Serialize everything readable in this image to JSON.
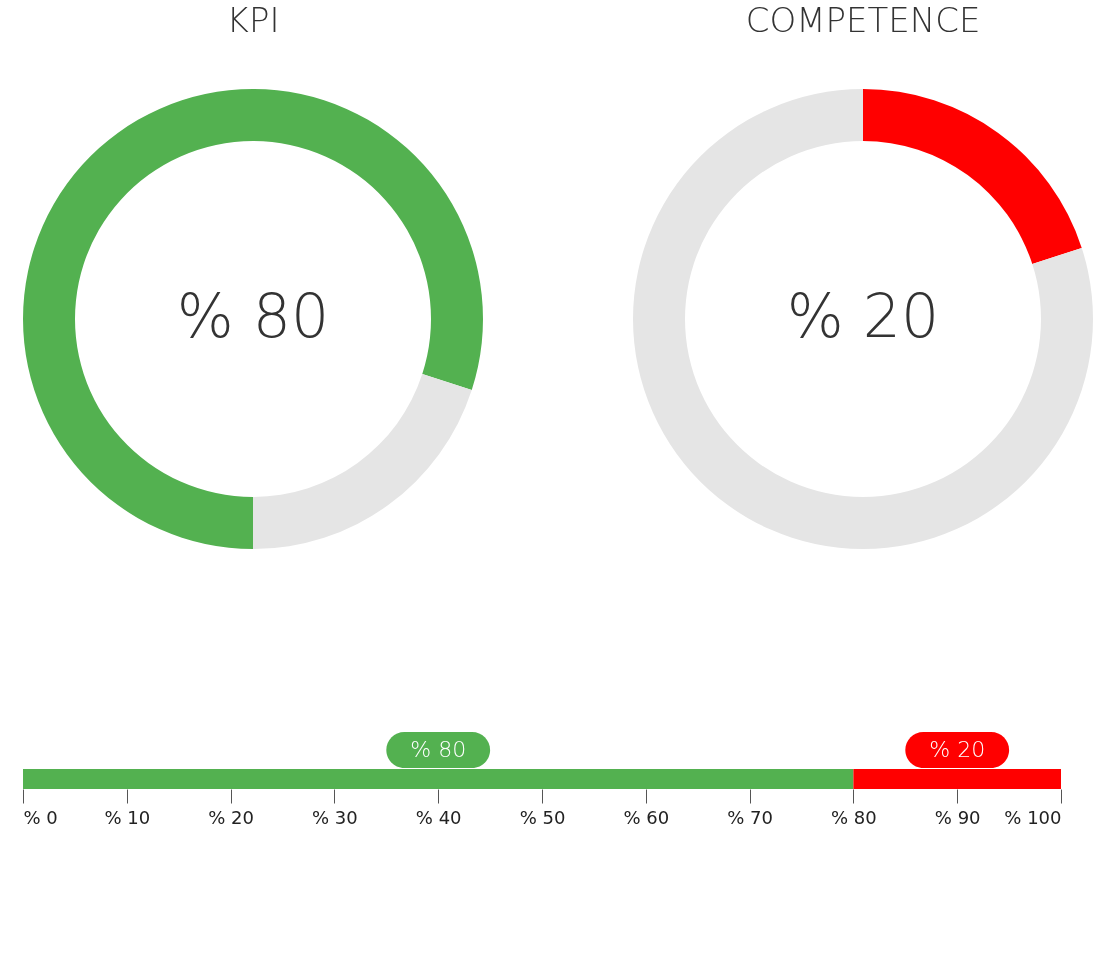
{
  "chart_data": [
    {
      "type": "donut",
      "title": "KPI",
      "categories": [
        null,
        null
      ],
      "values": [
        80,
        20
      ],
      "colors": [
        "#53b150",
        "#e5e5e5"
      ],
      "value_labels": [
        "% 80",
        null
      ]
    },
    {
      "type": "donut",
      "title": "COMPETENCE",
      "categories": [
        null,
        null
      ],
      "values": [
        20,
        80
      ],
      "colors": [
        "#ff0000",
        "#e5e5e5"
      ],
      "value_labels": [
        "% 20",
        null
      ]
    },
    {
      "type": "bar",
      "orientation": "horizontal",
      "stacked": true,
      "categories": [
        null
      ],
      "series": [
        {
          "color": "#53b150",
          "values": [
            80
          ],
          "value_labels": [
            "% 80"
          ]
        },
        {
          "color": "#ff0000",
          "values": [
            20
          ],
          "value_labels": [
            "% 20"
          ]
        }
      ],
      "xlim": [
        0,
        100
      ],
      "xticks": [
        {
          "value": 0,
          "label": "% 0"
        },
        {
          "value": 10,
          "label": "% 10"
        },
        {
          "value": 20,
          "label": "% 20"
        },
        {
          "value": 30,
          "label": "% 30"
        },
        {
          "value": 40,
          "label": "% 40"
        },
        {
          "value": 50,
          "label": "% 50"
        },
        {
          "value": 60,
          "label": "% 60"
        },
        {
          "value": 70,
          "label": "% 70"
        },
        {
          "value": 80,
          "label": "% 80"
        },
        {
          "value": 90,
          "label": "% 90"
        },
        {
          "value": 100,
          "label": "% 100"
        }
      ],
      "grid": false
    }
  ]
}
